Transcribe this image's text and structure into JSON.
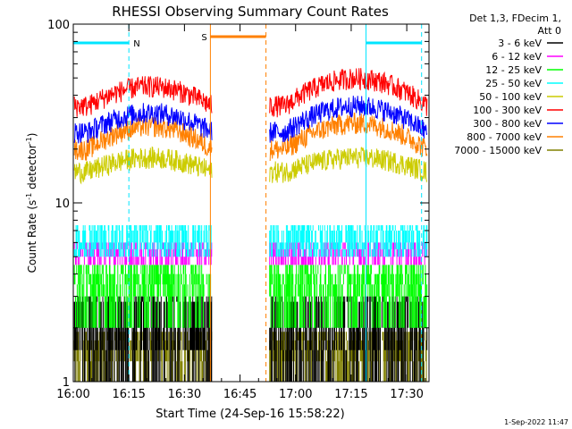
{
  "chart_data": {
    "type": "line",
    "title": "RHESSI Observing Summary Count Rates",
    "xlabel": "Start Time (24-Sep-16 15:58:22)",
    "ylabel_main": "Count Rate (s",
    "ylabel_exp1": "-1",
    "ylabel_mid": " detector",
    "ylabel_exp2": "-1",
    "ylabel_end": ")",
    "yscale": "log",
    "ylim": [
      1,
      100
    ],
    "xlim_minutes": [
      0,
      96
    ],
    "x_ticks": [
      {
        "t": 0,
        "label": "16:00"
      },
      {
        "t": 15,
        "label": "16:15"
      },
      {
        "t": 30,
        "label": "16:30"
      },
      {
        "t": 45,
        "label": "16:45"
      },
      {
        "t": 60,
        "label": "17:00"
      },
      {
        "t": 75,
        "label": "17:15"
      },
      {
        "t": 90,
        "label": "17:30"
      }
    ],
    "y_ticks": [
      {
        "v": 1,
        "label": "1"
      },
      {
        "v": 10,
        "label": "10"
      },
      {
        "v": 100,
        "label": "100"
      }
    ],
    "legend": {
      "header_line1": "Det 1,3, FDecim 1,",
      "header_line2": "Att 0",
      "placement": "right-outside"
    },
    "series": [
      {
        "name": "3 - 6 keV",
        "color": "#000000"
      },
      {
        "name": "6 - 12 keV",
        "color": "#ff00ff"
      },
      {
        "name": "12 - 25 keV",
        "color": "#00ff00"
      },
      {
        "name": "25 - 50 keV",
        "color": "#00ffff"
      },
      {
        "name": "50 - 100 keV",
        "color": "#cccc00"
      },
      {
        "name": "100 - 300 keV",
        "color": "#ff0000"
      },
      {
        "name": "300 - 800 keV",
        "color": "#0000ff"
      },
      {
        "name": "800 - 7000 keV",
        "color": "#ff8000"
      },
      {
        "name": "7000 - 15000 keV",
        "color": "#808000"
      }
    ],
    "annotations": [
      {
        "label": "N",
        "color": "#00e5ff",
        "t0": 0,
        "t1": 15
      },
      {
        "label": "S",
        "color": "#ff8000",
        "t0": 37,
        "t1": 52
      },
      {
        "label": "",
        "color": "#00e5ff",
        "t0": 79,
        "t1": 94
      }
    ],
    "data_gap_minutes": [
      37.5,
      52.5
    ],
    "band_levels": {
      "3 - 6 keV": {
        "seg1": [
          1.5,
          2.2
        ],
        "seg2": [
          1.5,
          2.2
        ]
      },
      "6 - 12 keV": {
        "seg1": [
          5,
          6
        ],
        "seg2": [
          5,
          6
        ]
      },
      "12 - 25 keV": {
        "seg1": [
          3,
          4.5
        ],
        "seg2": [
          3,
          4.5
        ]
      },
      "25 - 50 keV": {
        "seg1": [
          6,
          7
        ],
        "seg2": [
          6,
          7
        ]
      },
      "50 - 100 keV": {
        "seg1": [
          15,
          18
        ],
        "seg2": [
          15,
          18
        ]
      },
      "100 - 300 keV": {
        "seg1": [
          35,
          45
        ],
        "seg2": [
          35,
          50
        ]
      },
      "300 - 800 keV": {
        "seg1": [
          25,
          32
        ],
        "seg2": [
          25,
          35
        ]
      },
      "800 - 7000 keV": {
        "seg1": [
          20,
          27
        ],
        "seg2": [
          20,
          28
        ]
      },
      "7000 - 15000 keV": {
        "seg1": [
          1.0,
          1.8
        ],
        "seg2": [
          1.0,
          1.8
        ]
      }
    }
  },
  "footer": {
    "date": "1-Sep-2022 11:47"
  }
}
